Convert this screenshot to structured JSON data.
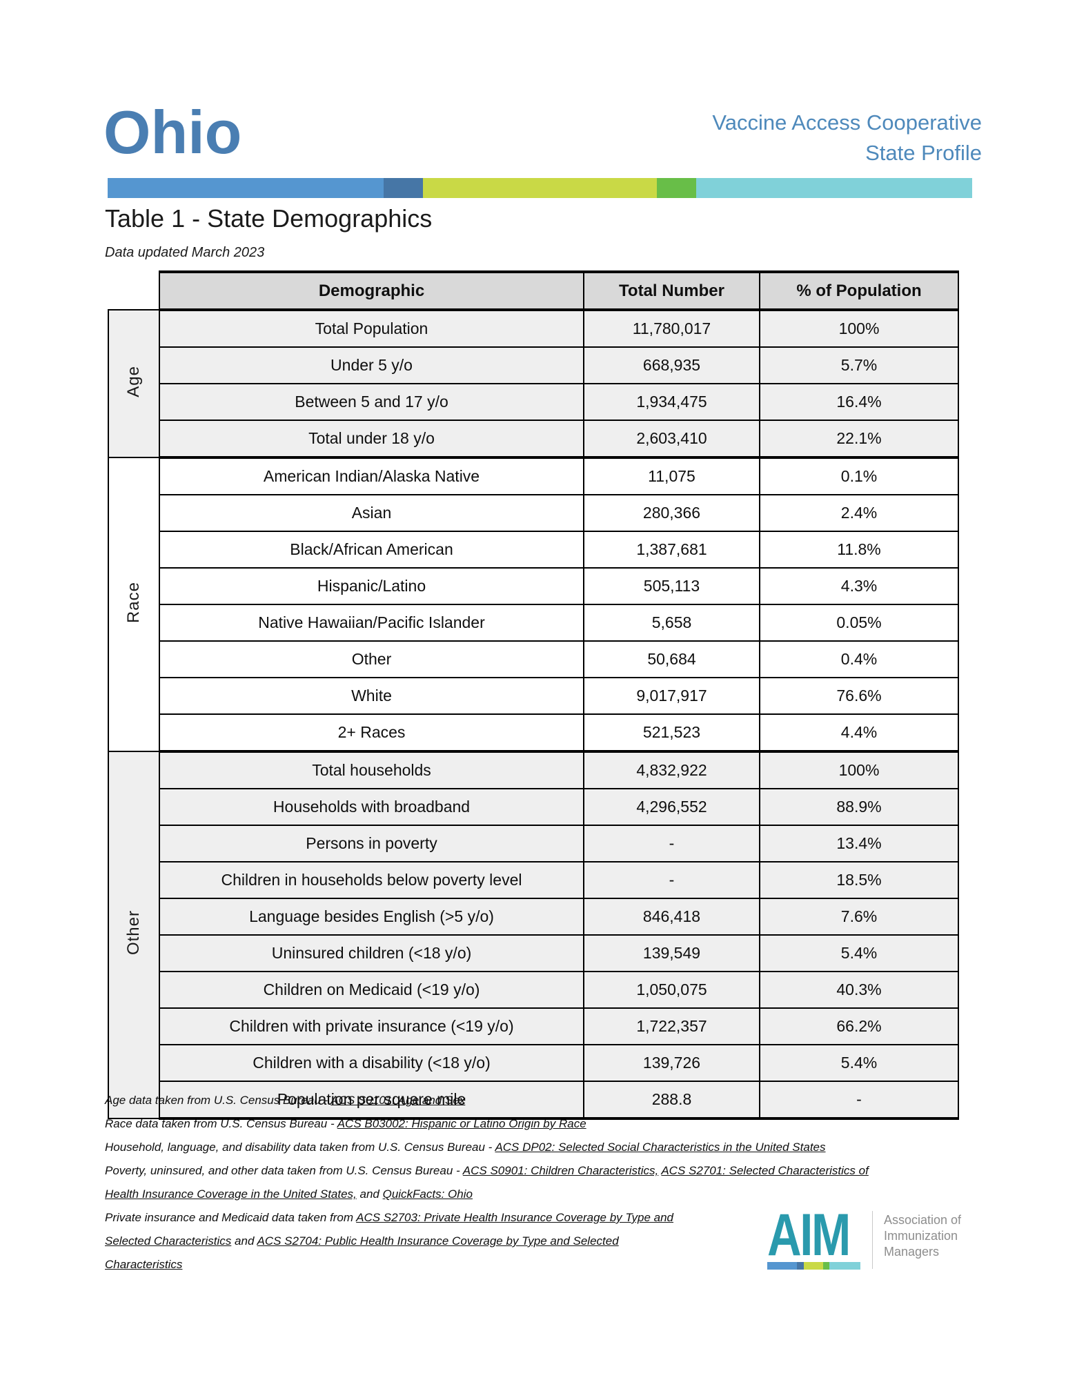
{
  "header": {
    "state": "Ohio",
    "program_line1": "Vaccine Access Cooperative",
    "program_line2": "State Profile"
  },
  "brand_colors": {
    "ohio_blue": "#4a7eb2",
    "header_blue": "#4e89bb",
    "bar_segments": [
      {
        "name": "blue",
        "color": "#5596d0",
        "width_pct": 31.9
      },
      {
        "name": "dark-blue",
        "color": "#4676a6",
        "width_pct": 4.6
      },
      {
        "name": "yellow-green",
        "color": "#c9d946",
        "width_pct": 27.0
      },
      {
        "name": "green",
        "color": "#68be48",
        "width_pct": 4.6
      },
      {
        "name": "teal",
        "color": "#80d1d9",
        "width_pct": 31.9
      }
    ]
  },
  "table": {
    "title": "Table 1 - State Demographics",
    "subtitle": "Data updated March 2023",
    "columns": [
      "Demographic",
      "Total Number",
      "% of Population"
    ],
    "sections": [
      {
        "label": "Age",
        "shaded": true,
        "rows": [
          [
            "Total Population",
            "11,780,017",
            "100%"
          ],
          [
            "Under 5 y/o",
            "668,935",
            "5.7%"
          ],
          [
            "Between 5 and 17 y/o",
            "1,934,475",
            "16.4%"
          ],
          [
            "Total under 18 y/o",
            "2,603,410",
            "22.1%"
          ]
        ]
      },
      {
        "label": "Race",
        "shaded": false,
        "rows": [
          [
            "American Indian/Alaska Native",
            "11,075",
            "0.1%"
          ],
          [
            "Asian",
            "280,366",
            "2.4%"
          ],
          [
            "Black/African American",
            "1,387,681",
            "11.8%"
          ],
          [
            "Hispanic/Latino",
            "505,113",
            "4.3%"
          ],
          [
            "Native Hawaiian/Pacific Islander",
            "5,658",
            "0.05%"
          ],
          [
            "Other",
            "50,684",
            "0.4%"
          ],
          [
            "White",
            "9,017,917",
            "76.6%"
          ],
          [
            "2+ Races",
            "521,523",
            "4.4%"
          ]
        ]
      },
      {
        "label": "Other",
        "shaded": true,
        "rows": [
          [
            "Total households",
            "4,832,922",
            "100%"
          ],
          [
            "Households with broadband",
            "4,296,552",
            "88.9%"
          ],
          [
            "Persons in poverty",
            "-",
            "13.4%"
          ],
          [
            "Children in households below poverty level",
            "-",
            "18.5%"
          ],
          [
            "Language besides English (>5 y/o)",
            "846,418",
            "7.6%"
          ],
          [
            "Uninsured children (<18 y/o)",
            "139,549",
            "5.4%"
          ],
          [
            "Children on Medicaid (<19 y/o)",
            "1,050,075",
            "40.3%"
          ],
          [
            "Children with private insurance (<19 y/o)",
            "1,722,357",
            "66.2%"
          ],
          [
            "Children with a disability (<18 y/o)",
            "139,726",
            "5.4%"
          ],
          [
            "Population per square mile",
            "288.8",
            "-"
          ]
        ]
      }
    ]
  },
  "footnotes": {
    "lines": [
      [
        {
          "t": "Age data taken from U.S. Census Bureau - "
        },
        {
          "t": "ACS S0101: Age and Sex",
          "u": true
        }
      ],
      [
        {
          "t": "Race data taken from U.S. Census Bureau - "
        },
        {
          "t": "ACS B03002: Hispanic or Latino Origin by Race",
          "u": true
        }
      ],
      [
        {
          "t": "Household, language, and disability data taken from U.S. Census Bureau - "
        },
        {
          "t": "ACS DP02: Selected Social Characteristics in the United States",
          "u": true
        }
      ],
      [
        {
          "t": "Poverty, uninsured, and other data taken from U.S. Census Bureau - "
        },
        {
          "t": "ACS S0901: Children Characteristics,",
          "u": true
        },
        {
          "t": " "
        },
        {
          "t": "ACS S2701: Selected Characteristics of",
          "u": true
        }
      ],
      [
        {
          "t": "Health Insurance Coverage in the United States,",
          "u": true
        },
        {
          "t": " and "
        },
        {
          "t": "QuickFacts: Ohio",
          "u": true
        }
      ],
      [
        {
          "t": "Private insurance and Medicaid data taken from "
        },
        {
          "t": "ACS S2703: Private Health Insurance Coverage by Type and",
          "u": true
        }
      ],
      [
        {
          "t": "Selected Characteristics",
          "u": true
        },
        {
          "t": " and "
        },
        {
          "t": "ACS S2704: Public Health Insurance Coverage by Type and Selected",
          "u": true
        }
      ],
      [
        {
          "t": "Characteristics",
          "u": true
        }
      ]
    ]
  },
  "aim_logo": {
    "acronym": "AIM",
    "teal": "#2a9aad",
    "org_lines": [
      "Association of",
      "Immunization",
      "Managers"
    ],
    "bar_segments": [
      {
        "name": "blue",
        "color": "#5596d0",
        "width_pct": 32
      },
      {
        "name": "dark-blue",
        "color": "#4676a6",
        "width_pct": 7
      },
      {
        "name": "yellow-green",
        "color": "#c9d946",
        "width_pct": 21
      },
      {
        "name": "green",
        "color": "#68be48",
        "width_pct": 7
      },
      {
        "name": "teal",
        "color": "#80d1d9",
        "width_pct": 33
      }
    ]
  }
}
